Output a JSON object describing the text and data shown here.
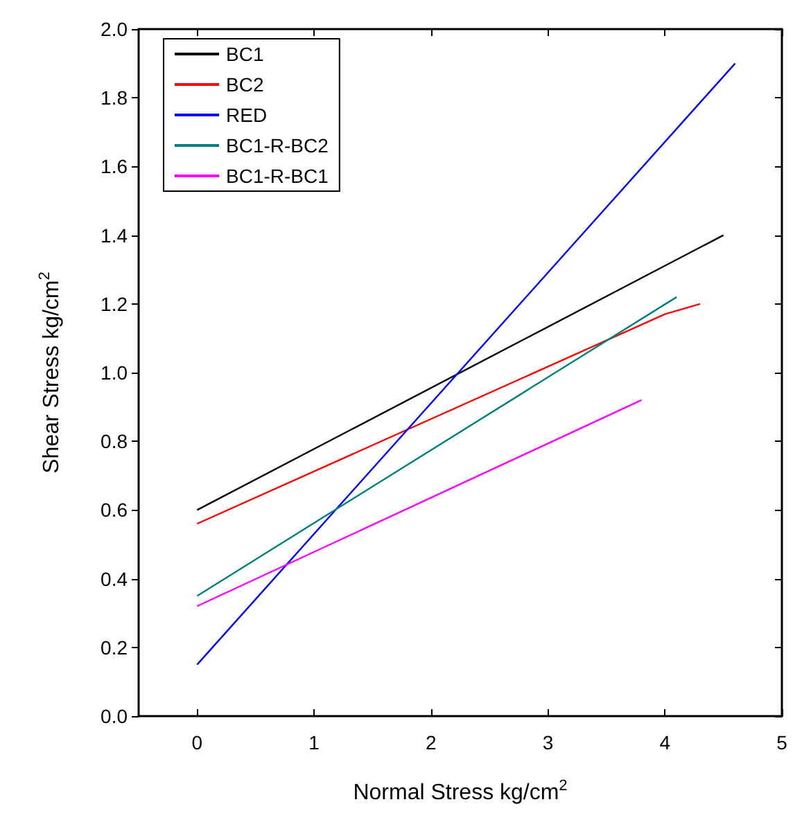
{
  "chart_data": {
    "type": "line",
    "xlabel": "Normal Stress kg/cm$^{2}$",
    "ylabel": "Shear Stress kg/cm$^{2}$",
    "xlim": [
      -0.5,
      5
    ],
    "xticks": [
      0,
      1,
      2,
      3,
      4,
      5
    ],
    "ylim": [
      0,
      2
    ],
    "yticks": [
      {
        "value": 0,
        "label": "0.0"
      },
      0.2,
      0.4,
      0.6,
      0.8,
      {
        "value": 1,
        "label": "1.0"
      },
      1.2,
      1.4,
      1.6,
      1.8,
      {
        "value": 2,
        "label": "2.0"
      }
    ],
    "grid": false,
    "legend": "top left",
    "marker": "none",
    "line_style": "solid",
    "series": [
      {
        "name": "BC1",
        "color": "#000000",
        "x": [
          0,
          3.6,
          4.5
        ],
        "values": [
          0.6,
          1.24,
          1.4
        ]
      },
      {
        "name": "BC2",
        "color": "#ff0000",
        "x": [
          0,
          4,
          4.3
        ],
        "values": [
          0.56,
          1.17,
          1.2
        ]
      },
      {
        "name": "RED",
        "color": "#0000ff",
        "x": [
          0,
          4.6
        ],
        "values": [
          0.15,
          1.9
        ]
      },
      {
        "name": "BC1-R-BC2",
        "color": "#008080",
        "x": [
          0,
          4.1
        ],
        "values": [
          0.35,
          1.22
        ]
      },
      {
        "name": "BC1-R-BC1",
        "color": "#ff00ff",
        "x": [
          0,
          3.8
        ],
        "values": [
          0.32,
          0.92
        ]
      }
    ]
  }
}
